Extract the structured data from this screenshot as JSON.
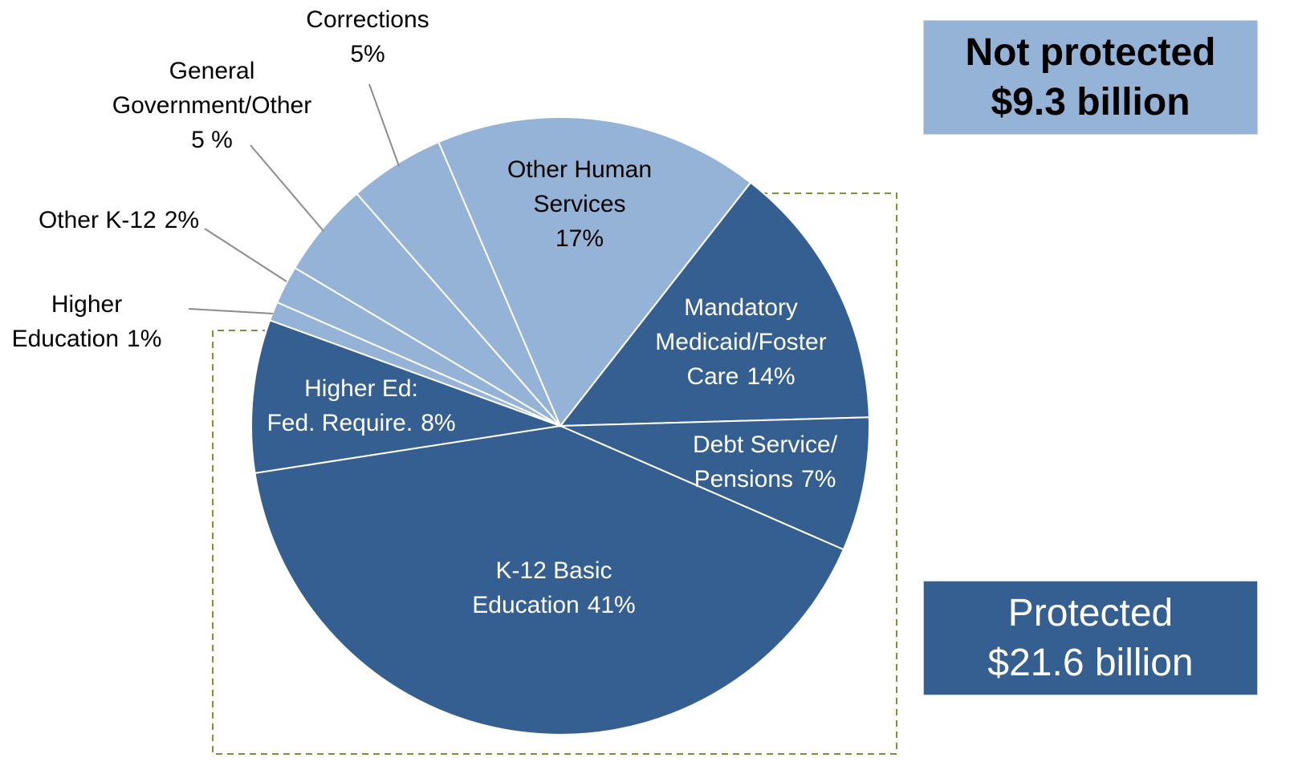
{
  "chart_data": {
    "type": "pie",
    "categories": [
      "Mandatory\nMedicaid/Foster\nCare",
      "Debt Service/\nPensions",
      "K-12 Basic\nEducation",
      "Higher Ed:\nFed. Require.",
      "Higher\nEducation",
      "Other K-12",
      "General\nGovernment/Other",
      "Corrections",
      "Other Human\nServices"
    ],
    "values": [
      14,
      7,
      41,
      8,
      1,
      2,
      5,
      5,
      17
    ],
    "value_labels": [
      "14%",
      "7%",
      "41%",
      "8%",
      "1%",
      "2%",
      "5 %",
      "5%",
      "17%"
    ],
    "colors": [
      "#365f91",
      "#365f91",
      "#365f91",
      "#365f91",
      "#95b3d7",
      "#95b3d7",
      "#95b3d7",
      "#95b3d7",
      "#95b3d7"
    ],
    "annotations": [
      {
        "title": "Not protected",
        "amount": "$9.3 billion"
      },
      {
        "title": "Protected",
        "amount": "$21.6 billion"
      }
    ]
  }
}
